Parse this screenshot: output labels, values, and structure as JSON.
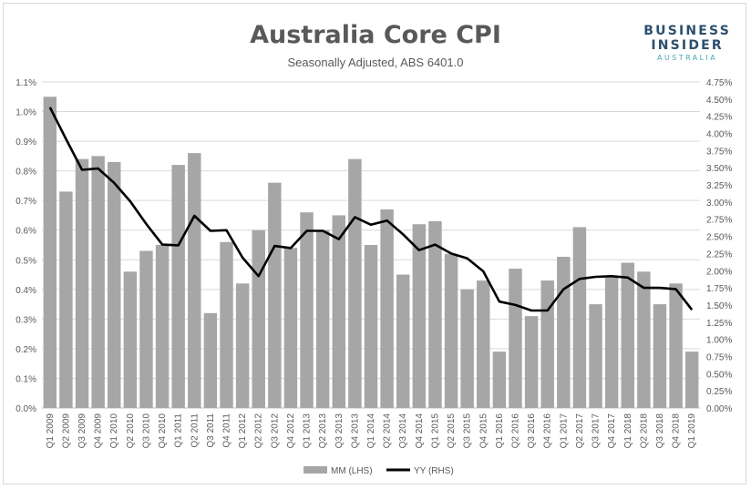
{
  "logo": {
    "line1": "BUSINESS",
    "line2": "INSIDER",
    "line3": "AUSTRALIA"
  },
  "colors": {
    "bar": "#a6a6a6",
    "line": "#000000",
    "grid": "#d9d9d9",
    "text": "#595959"
  },
  "chart_data": {
    "type": "bar",
    "title": "Australia Core CPI",
    "subtitle": "Seasonally Adjusted, ABS 6401.0",
    "categories": [
      "Q1 2009",
      "Q2 2009",
      "Q3 2009",
      "Q4 2009",
      "Q1 2010",
      "Q2 2010",
      "Q3 2010",
      "Q4 2010",
      "Q1 2011",
      "Q2 2011",
      "Q3 2011",
      "Q4 2011",
      "Q1 2012",
      "Q2 2012",
      "Q3 2012",
      "Q4 2012",
      "Q1 2013",
      "Q2 2013",
      "Q3 2013",
      "Q4 2013",
      "Q1 2014",
      "Q2 2014",
      "Q3 2014",
      "Q4 2014",
      "Q1 2015",
      "Q2 2015",
      "Q3 2015",
      "Q4 2015",
      "Q1 2016",
      "Q2 2016",
      "Q3 2016",
      "Q4 2016",
      "Q1 2017",
      "Q2 2017",
      "Q3 2017",
      "Q4 2017",
      "Q1 2018",
      "Q2 2018",
      "Q3 2018",
      "Q4 2018",
      "Q1 2019"
    ],
    "series": [
      {
        "name": "MM (LHS)",
        "type": "bar",
        "axis": "left",
        "values": [
          1.05,
          0.73,
          0.84,
          0.85,
          0.83,
          0.46,
          0.53,
          0.55,
          0.82,
          0.86,
          0.32,
          0.56,
          0.42,
          0.6,
          0.76,
          0.54,
          0.66,
          0.6,
          0.65,
          0.84,
          0.55,
          0.67,
          0.45,
          0.62,
          0.63,
          0.52,
          0.4,
          0.43,
          0.19,
          0.47,
          0.31,
          0.43,
          0.51,
          0.61,
          0.35,
          0.44,
          0.49,
          0.46,
          0.35,
          0.42,
          0.19
        ]
      },
      {
        "name": "YY (RHS)",
        "type": "line",
        "axis": "right",
        "values": [
          4.38,
          3.92,
          3.47,
          3.49,
          3.28,
          3.01,
          2.68,
          2.38,
          2.37,
          2.8,
          2.58,
          2.59,
          2.19,
          1.92,
          2.36,
          2.33,
          2.58,
          2.58,
          2.46,
          2.78,
          2.67,
          2.73,
          2.53,
          2.3,
          2.38,
          2.25,
          2.18,
          1.99,
          1.55,
          1.5,
          1.42,
          1.42,
          1.73,
          1.88,
          1.91,
          1.92,
          1.9,
          1.75,
          1.75,
          1.73,
          1.43
        ]
      }
    ],
    "y_left": {
      "min": 0,
      "max": 1.1,
      "step": 0.1,
      "ticks": [
        "0.0%",
        "0.1%",
        "0.2%",
        "0.3%",
        "0.4%",
        "0.5%",
        "0.6%",
        "0.7%",
        "0.8%",
        "0.9%",
        "1.0%",
        "1.1%"
      ]
    },
    "y_right": {
      "min": 0,
      "max": 4.75,
      "step": 0.25,
      "ticks": [
        "0.00%",
        "0.25%",
        "0.50%",
        "0.75%",
        "1.00%",
        "1.25%",
        "1.50%",
        "1.75%",
        "2.00%",
        "2.25%",
        "2.50%",
        "2.75%",
        "3.00%",
        "3.25%",
        "3.50%",
        "3.75%",
        "4.00%",
        "4.25%",
        "4.50%",
        "4.75%"
      ]
    },
    "grid": true,
    "legend_position": "bottom"
  }
}
